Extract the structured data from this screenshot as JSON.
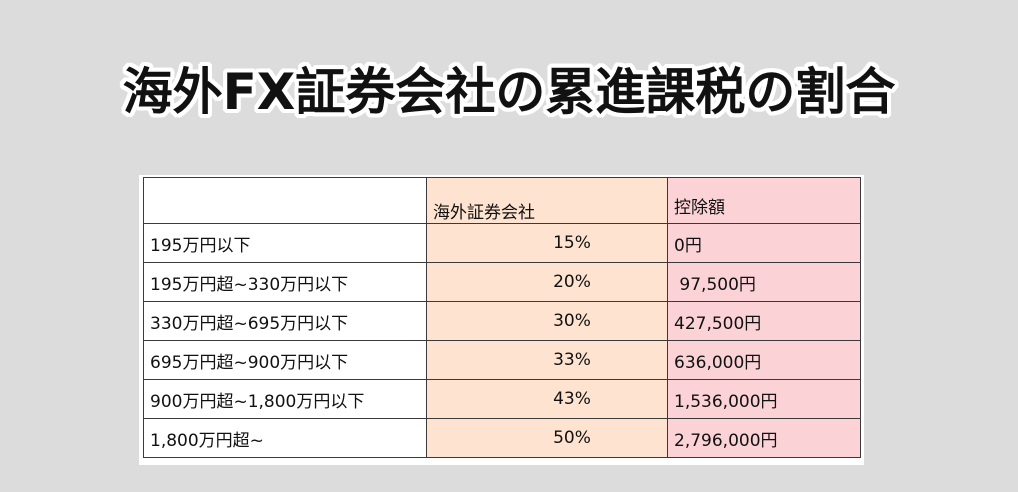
{
  "title": "海外FX証券会社の累進課税の割合",
  "table": {
    "headers": {
      "bracket": "",
      "rate": "海外証券会社",
      "deduction": "控除額"
    },
    "rows": [
      {
        "bracket": "195万円以下",
        "rate": "15%",
        "deduction": "0円"
      },
      {
        "bracket": "195万円超~330万円以下",
        "rate": "20%",
        "deduction": " 97,500円"
      },
      {
        "bracket": "330万円超~695万円以下",
        "rate": "30%",
        "deduction": "427,500円"
      },
      {
        "bracket": "695万円超~900万円以下",
        "rate": "33%",
        "deduction": "636,000円"
      },
      {
        "bracket": "900万円超~1,800万円以下",
        "rate": "43%",
        "deduction": "1,536,000円"
      },
      {
        "bracket": "1,800万円超~",
        "rate": "50%",
        "deduction": "2,796,000円"
      }
    ]
  },
  "colors": {
    "background": "#dcdcdc",
    "rate_column": "#fde3d0",
    "deduction_column": "#fbd2d6"
  }
}
